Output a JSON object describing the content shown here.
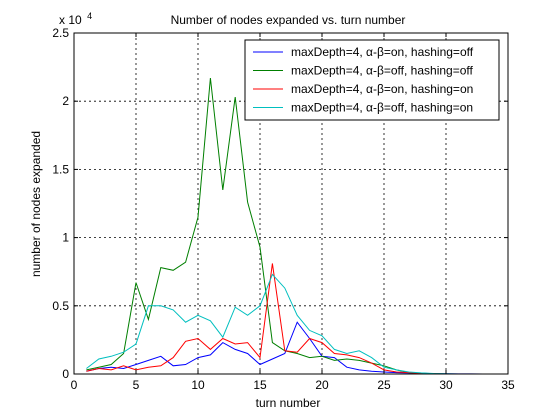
{
  "chart_data": {
    "type": "line",
    "title": "Number of nodes expanded vs. turn number",
    "xlabel": "turn number",
    "ylabel": "number of nodes expanded",
    "y_multiplier_base": "x 10",
    "y_multiplier_exp": "4",
    "xlim": [
      0,
      35
    ],
    "ylim": [
      0,
      25000
    ],
    "xticks": [
      0,
      5,
      10,
      15,
      20,
      25,
      30,
      35
    ],
    "xtick_labels": [
      "0",
      "5",
      "10",
      "15",
      "20",
      "25",
      "30",
      "35"
    ],
    "yticks": [
      0,
      5000,
      10000,
      15000,
      20000,
      25000
    ],
    "ytick_labels": [
      "0",
      "0.5",
      "1",
      "1.5",
      "2",
      "2.5"
    ],
    "grid": true,
    "legend_position": "top-right",
    "series": [
      {
        "name": "maxDepth=4, α-β=on, hashing=off",
        "color": "#0000ff",
        "x": [
          1,
          2,
          3,
          4,
          5,
          6,
          7,
          8,
          9,
          10,
          11,
          12,
          13,
          14,
          15,
          16,
          17,
          18,
          19,
          20,
          21,
          22,
          23,
          24,
          25,
          26,
          27,
          28,
          29,
          30,
          31,
          32,
          33
        ],
        "y": [
          200,
          400,
          500,
          400,
          700,
          1000,
          1300,
          600,
          700,
          1200,
          1400,
          2300,
          1800,
          1500,
          700,
          1100,
          1500,
          3800,
          2600,
          1300,
          1200,
          500,
          300,
          200,
          150,
          100,
          80,
          50,
          30,
          20,
          10,
          5,
          0
        ]
      },
      {
        "name": "maxDepth=4, α-β=off, hashing=off",
        "color": "#007f00",
        "x": [
          1,
          2,
          3,
          4,
          5,
          6,
          7,
          8,
          9,
          10,
          11,
          12,
          13,
          14,
          15,
          16,
          17,
          18,
          19,
          20,
          21,
          22,
          23,
          24,
          25,
          26,
          27,
          28,
          29,
          30
        ],
        "y": [
          300,
          500,
          700,
          1500,
          6700,
          4000,
          7800,
          7600,
          8200,
          11500,
          21700,
          13500,
          20300,
          12600,
          9300,
          2300,
          1700,
          1500,
          1200,
          1300,
          1000,
          1100,
          1000,
          800,
          600,
          300,
          100,
          50,
          20,
          0
        ]
      },
      {
        "name": "maxDepth=4, α-β=on, hashing=on",
        "color": "#ff0000",
        "x": [
          1,
          2,
          3,
          4,
          5,
          6,
          7,
          8,
          9,
          10,
          11,
          12,
          13,
          14,
          15,
          16,
          17,
          18,
          19,
          20,
          21,
          22,
          23,
          24,
          25,
          26,
          27,
          28,
          29,
          30
        ],
        "y": [
          200,
          400,
          300,
          600,
          300,
          500,
          600,
          1200,
          2400,
          2600,
          1800,
          2600,
          2200,
          2300,
          1200,
          8100,
          1700,
          1600,
          2600,
          2300,
          1500,
          1400,
          1200,
          800,
          300,
          150,
          100,
          50,
          20,
          0
        ]
      },
      {
        "name": "maxDepth=4, α-β=off, hashing=on",
        "color": "#00bfbf",
        "x": [
          1,
          2,
          3,
          4,
          5,
          6,
          7,
          8,
          9,
          10,
          11,
          12,
          13,
          14,
          15,
          16,
          17,
          18,
          19,
          20,
          21,
          22,
          23,
          24,
          25,
          26,
          27,
          28,
          29,
          30,
          31
        ],
        "y": [
          400,
          1100,
          1300,
          1600,
          2200,
          5000,
          5000,
          4700,
          3800,
          4300,
          3900,
          2700,
          4900,
          4300,
          5000,
          7300,
          6300,
          4300,
          3200,
          2800,
          1800,
          1500,
          1700,
          1200,
          500,
          300,
          150,
          80,
          40,
          20,
          0
        ]
      }
    ]
  }
}
